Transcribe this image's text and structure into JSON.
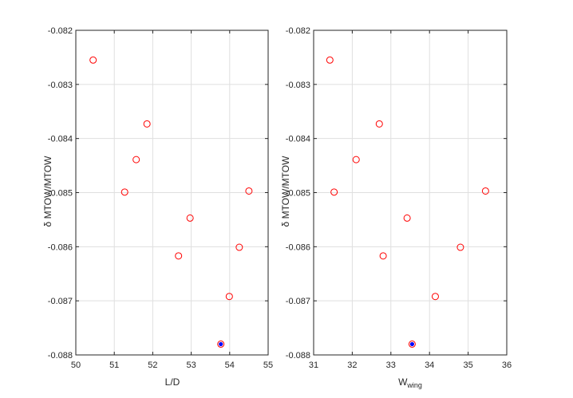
{
  "chart_data": [
    {
      "type": "scatter",
      "xlabel": "L/D",
      "xlabel_sub": "",
      "ylabel": "δ MTOW/MTOW",
      "xlim": [
        50,
        55
      ],
      "ylim": [
        -0.088,
        -0.082
      ],
      "xticks": [
        "50",
        "51",
        "52",
        "53",
        "54",
        "55"
      ],
      "yticks": [
        "-0.082",
        "-0.083",
        "-0.084",
        "-0.085",
        "-0.086",
        "-0.087",
        "-0.088"
      ],
      "grid": true,
      "points": [
        {
          "x": 50.45,
          "y": -0.08255
        },
        {
          "x": 51.85,
          "y": -0.08373
        },
        {
          "x": 51.57,
          "y": -0.08439
        },
        {
          "x": 51.27,
          "y": -0.08499
        },
        {
          "x": 54.5,
          "y": -0.08497
        },
        {
          "x": 52.97,
          "y": -0.08547
        },
        {
          "x": 54.25,
          "y": -0.08601
        },
        {
          "x": 52.67,
          "y": -0.08617
        },
        {
          "x": 53.99,
          "y": -0.08692
        },
        {
          "x": 53.77,
          "y": -0.0878
        }
      ],
      "highlight": {
        "x": 53.77,
        "y": -0.0878
      }
    },
    {
      "type": "scatter",
      "xlabel": "W",
      "xlabel_sub": "wing",
      "ylabel": "δ MTOW/MTOW",
      "xlim": [
        31,
        36
      ],
      "ylim": [
        -0.088,
        -0.082
      ],
      "xticks": [
        "31",
        "32",
        "33",
        "34",
        "35",
        "36"
      ],
      "yticks": [
        "-0.082",
        "-0.083",
        "-0.084",
        "-0.085",
        "-0.086",
        "-0.087",
        "-0.088"
      ],
      "grid": true,
      "points": [
        {
          "x": 31.42,
          "y": -0.08255
        },
        {
          "x": 32.7,
          "y": -0.08373
        },
        {
          "x": 32.1,
          "y": -0.08439
        },
        {
          "x": 31.53,
          "y": -0.08499
        },
        {
          "x": 35.45,
          "y": -0.08497
        },
        {
          "x": 33.42,
          "y": -0.08547
        },
        {
          "x": 34.8,
          "y": -0.08601
        },
        {
          "x": 32.8,
          "y": -0.08617
        },
        {
          "x": 34.15,
          "y": -0.08692
        },
        {
          "x": 33.55,
          "y": -0.0878
        }
      ],
      "highlight": {
        "x": 33.55,
        "y": -0.0878
      }
    }
  ],
  "colors": {
    "marker": "#ff0000",
    "highlight": "#0000ff"
  }
}
